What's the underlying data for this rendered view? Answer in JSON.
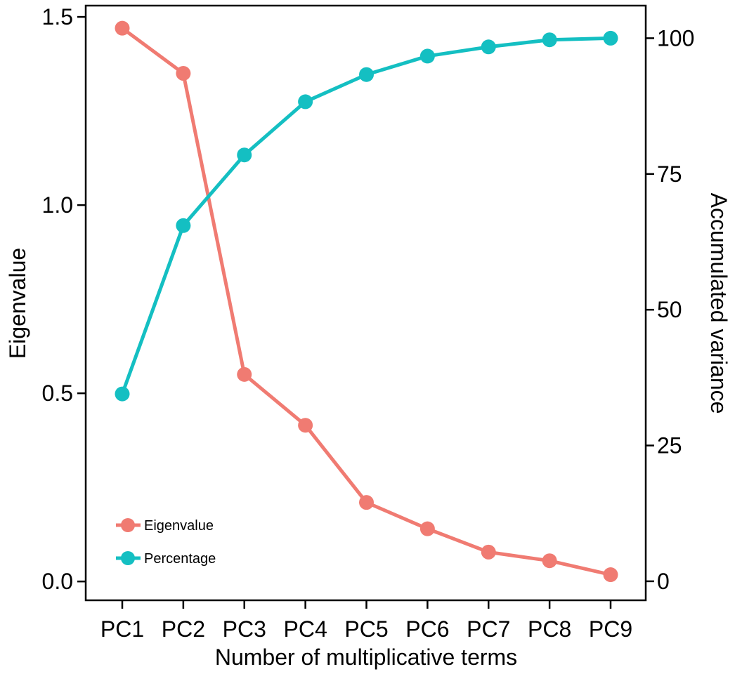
{
  "chart_data": {
    "type": "line",
    "categories": [
      "PC1",
      "PC2",
      "PC3",
      "PC4",
      "PC5",
      "PC6",
      "PC7",
      "PC8",
      "PC9"
    ],
    "xlabel": "Number of multiplicative terms",
    "ylabel": "Eigenvalue",
    "y2label": "Accumulated variance",
    "ylim": [
      -0.05,
      1.53
    ],
    "y2lim": [
      -3.5,
      106
    ],
    "yticks": [
      "0.0",
      "0.5",
      "1.0",
      "1.5"
    ],
    "y2ticks": [
      "0",
      "25",
      "50",
      "75",
      "100"
    ],
    "legend_position": "bottom-left",
    "grid": false,
    "series": [
      {
        "name": "Eigenvalue",
        "axis": "left",
        "color": "#F07B72",
        "values": [
          1.47,
          1.35,
          0.55,
          0.415,
          0.21,
          0.14,
          0.078,
          0.055,
          0.018
        ]
      },
      {
        "name": "Percentage",
        "axis": "right",
        "color": "#14BFC2",
        "values": [
          34.5,
          65.5,
          78.5,
          88.3,
          93.3,
          96.7,
          98.4,
          99.7,
          100
        ]
      }
    ]
  }
}
